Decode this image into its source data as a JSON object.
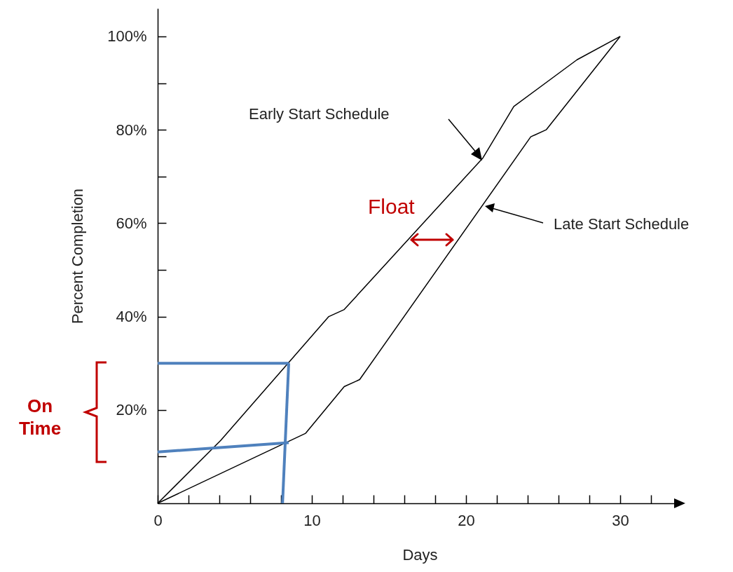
{
  "chart_data": {
    "type": "line",
    "xlabel": "Days",
    "ylabel": "Percent Completion",
    "xlim": [
      0,
      34
    ],
    "ylim": [
      0,
      106
    ],
    "xticks": [
      0,
      {
        "value": 2,
        "label": null
      },
      {
        "value": 4,
        "label": null
      },
      {
        "value": 6,
        "label": null
      },
      {
        "value": 8,
        "label": null
      },
      10,
      {
        "value": 12,
        "label": null
      },
      {
        "value": 14,
        "label": null
      },
      {
        "value": 16,
        "label": null
      },
      {
        "value": 18,
        "label": null
      },
      20,
      {
        "value": 22,
        "label": null
      },
      {
        "value": 24,
        "label": null
      },
      {
        "value": 26,
        "label": null
      },
      {
        "value": 28,
        "label": null
      },
      30,
      {
        "value": 32,
        "label": null
      }
    ],
    "yticks": [
      {
        "value": 10,
        "label": null
      },
      {
        "value": 20,
        "label": "20%"
      },
      {
        "value": 30,
        "label": null
      },
      {
        "value": 40,
        "label": "40%"
      },
      {
        "value": 50,
        "label": null
      },
      {
        "value": 60,
        "label": "60%"
      },
      {
        "value": 70,
        "label": null
      },
      {
        "value": 80,
        "label": "80%"
      },
      {
        "value": 90,
        "label": null
      },
      {
        "value": 100,
        "label": "100%"
      }
    ],
    "grid": false,
    "marker": "none",
    "line_style": "solid",
    "series": [
      {
        "color": "#000000",
        "x": [
          0,
          4.1,
          11.1,
          12.1,
          21.1,
          23.1,
          27.2,
          30
        ],
        "values": [
          0,
          13.5,
          40,
          41.5,
          74,
          85,
          95,
          100
        ]
      },
      {
        "color": "#000000",
        "x": [
          0,
          9.6,
          12.1,
          13.1,
          24.2,
          25.2,
          30
        ],
        "values": [
          0,
          15,
          25,
          26.5,
          78.5,
          80,
          100
        ]
      },
      {
        "color": "#4f81bd",
        "x": [
          0,
          8.5
        ],
        "values": [
          30,
          30
        ]
      },
      {
        "color": "#4f81bd",
        "x": [
          0,
          8.5
        ],
        "values": [
          11,
          13
        ]
      },
      {
        "color": "#4f81bd",
        "x": [
          8.5,
          8.1
        ],
        "values": [
          30,
          0
        ]
      }
    ],
    "annotations": [
      "Early Start Schedule",
      "Late Start Schedule",
      "Float",
      "On Time"
    ]
  }
}
